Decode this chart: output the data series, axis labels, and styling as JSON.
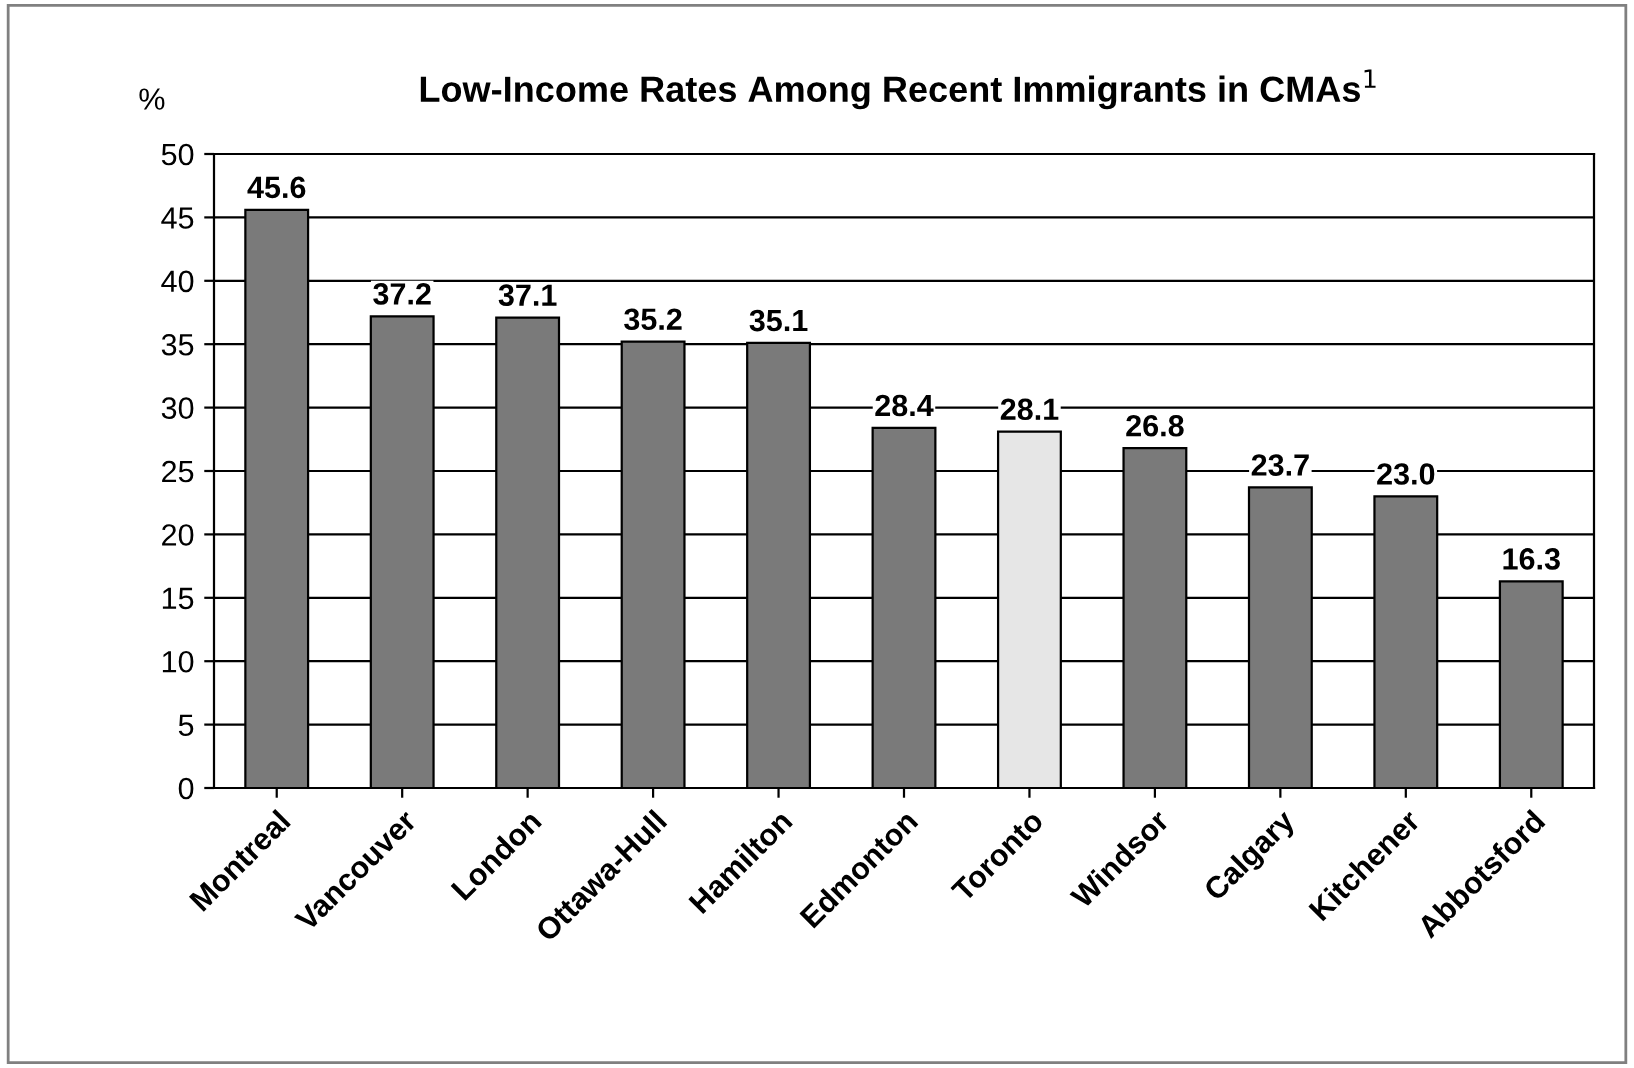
{
  "chart_data": {
    "type": "bar",
    "title": "Low-Income Rates Among Recent Immigrants in CMAs$^{1}$",
    "ylabel": "%",
    "categories": [
      "Montreal",
      "Vancouver",
      "London",
      "Ottawa-Hull",
      "Hamilton",
      "Edmonton",
      "Toronto",
      "Windsor",
      "Calgary",
      "Kitchener",
      "Abbotsford"
    ],
    "values": [
      45.6,
      37.2,
      37.1,
      35.2,
      35.1,
      28.4,
      28.1,
      26.8,
      23.7,
      23.0,
      16.3
    ],
    "colors": [
      "#7a7a7a",
      "#7a7a7a",
      "#7a7a7a",
      "#7a7a7a",
      "#7a7a7a",
      "#7a7a7a",
      "#e6e6e6",
      "#7a7a7a",
      "#7a7a7a",
      "#7a7a7a",
      "#7a7a7a"
    ],
    "value_labels": [
      "45.6",
      "37.2",
      "37.1",
      "35.2",
      "35.1",
      "28.4",
      "28.1",
      "26.8",
      "23.7",
      "23.0",
      "16.3"
    ],
    "ylim": [
      0,
      50
    ],
    "yticks": [
      0,
      5,
      10,
      15,
      20,
      25,
      30,
      35,
      40,
      45,
      50
    ],
    "grid": "y",
    "legend": false
  }
}
